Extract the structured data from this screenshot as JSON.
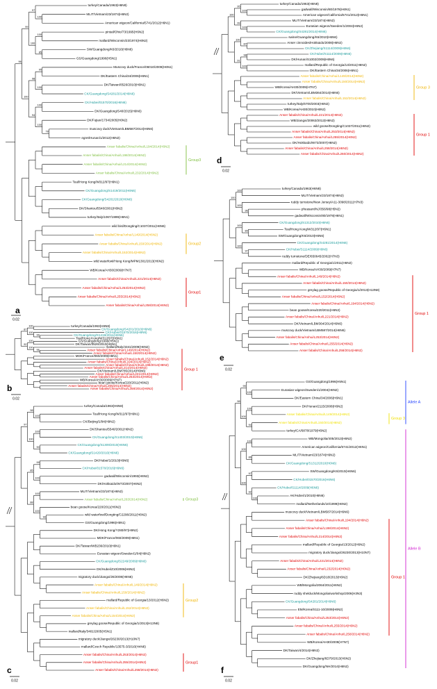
{
  "panels": [
    {
      "letter": "a",
      "scale": "0.02",
      "groups": [
        {
          "label": "Group3",
          "color": "#7fbf3f"
        },
        {
          "label": "Group2",
          "color": "#f0b400"
        },
        {
          "label": "Group1",
          "color": "#e00000"
        }
      ],
      "support": [
        100,
        97,
        100,
        85,
        100,
        99,
        95,
        100,
        98,
        100,
        78,
        100,
        94,
        100,
        96
      ],
      "leaves": [
        {
          "label": "turkey/Canada/1963(H6N8)"
        },
        {
          "label": "MLIT/Vietnam/23/1874(H6N2)"
        },
        {
          "label": "American wigeon/California/5741/2012(H6N1)"
        },
        {
          "label": "pintail/Ohio/73/1995(H6N2)"
        },
        {
          "label": "mallard/Wisconsin/23/1974(H6N2)"
        },
        {
          "label": "SW/Guangdong/K6/2010(H6N6)"
        },
        {
          "label": "GS/Guangdong/1996(H5N1)"
        },
        {
          "label": "Muscovy duck/France/06010/2009(H6N1)"
        },
        {
          "label": "DK/Eastern China/34/2006(H6N1)"
        },
        {
          "label": "DK/Taiwan/0526/2010(H6N1)"
        },
        {
          "label": "CK/Guangdong/S4281/2014(H6N6)",
          "color": "#1a9a9a"
        },
        {
          "label": "CK/Hubei/01570/2016(H6N6)",
          "color": "#1a9a9a"
        },
        {
          "label": "DK/Guangdong/S40/2015(H6N6)"
        },
        {
          "label": "DK/Fujian/1734/2005(H6N2)"
        },
        {
          "label": "muscovy duck/Vietnam/LBM587/2014(H6N6)"
        },
        {
          "label": "egret/Hunan/1/2012(H6N2)"
        },
        {
          "label": "Anser fabalis/China/Anhui/L194/2014(H6N2)",
          "color": "#7fbf3f"
        },
        {
          "label": "Anser fabalis/China/Anhui/L198/2014(H6N2)",
          "color": "#7fbf3f"
        },
        {
          "label": "Anser fabalis/China/Anhui/L214/2014(H6N2)",
          "color": "#7fbf3f"
        },
        {
          "label": "Anser fabalis/China/Anhui/L232/2014(H6N2)",
          "color": "#7fbf3f"
        },
        {
          "label": "Teal/Hong Kong/W312/97(H6N1)"
        },
        {
          "label": "CK/Guangdong/S1419/2011(H6N6)",
          "color": "#1a9a9a"
        },
        {
          "label": "CK/Guangdong/S4201/2010(H6N6)",
          "color": "#1a9a9a"
        },
        {
          "label": "DK/Shantou/5540/2001(H6N2)"
        },
        {
          "label": "turkey/Italy/1067/1999(H6N1)"
        },
        {
          "label": "wild bird/Dongting/C1037/2011(H6N6)"
        },
        {
          "label": "Anser fabalis/China/Anhui/L149/2014(H6N2)",
          "color": "#f0b400"
        },
        {
          "label": "Anser fabalis/China/Anhui/L150/2014(H6N2)",
          "color": "#f0b400"
        },
        {
          "label": "Anser fabalis/China/Anhui/L152/2014(H6N2)",
          "color": "#f0b400"
        },
        {
          "label": "wild waterfowl/Hong Kong/MPM1301/2013(H6N2)"
        },
        {
          "label": "WB/Korea/AH30/2009(H7N7)"
        },
        {
          "label": "Anser fabalis/China/Anhui/L221/2014(H6N2)",
          "color": "#e00000"
        },
        {
          "label": "Anser fabalis/China/Anhui/L253/2014(H6N2)",
          "color": "#e00000"
        },
        {
          "label": "Anser fabalis/China/Anhui/L255/2014(H6N2)",
          "color": "#e00000"
        },
        {
          "label": "Anser fabalis/China/Anhui/L258/2014(H6N2)",
          "color": "#e00000"
        }
      ]
    },
    {
      "letter": "b",
      "scale": "0.02",
      "groups": [
        {
          "label": "Group 1",
          "color": "#e00000"
        }
      ],
      "support": [
        100,
        99,
        100,
        87,
        100,
        96,
        100,
        92
      ],
      "leaves": [
        {
          "label": "turkey/Canada/1963(H6N8)"
        },
        {
          "label": "CK/Guangdong/S4201/2010(H6N6)",
          "color": "#1a9a9a"
        },
        {
          "label": "CK/Hubei/01570/2016(H6N6)",
          "color": "#1a9a9a"
        },
        {
          "label": "CK/Guangdong/S1419/2011(H6N6)",
          "color": "#1a9a9a"
        },
        {
          "label": "Teal/Hong Kong/W312/97(H6N1)"
        },
        {
          "label": "GS/Guangdong/1996(H5N1)"
        },
        {
          "label": "DK/Taiwan/0526/2010(H6N1)"
        },
        {
          "label": "mallard/Italy/4341/2009(H6N2)"
        },
        {
          "label": "Anser fabalis/China/Anhui/L149/2014(H6N2)",
          "color": "#e00000"
        },
        {
          "label": "Anser fabalis/China/Anhui/L150/2014(H6N2)",
          "color": "#e00000"
        },
        {
          "label": "MDK/France/060/2009(H6N1)"
        },
        {
          "label": "Anser fabalis/China/Anhui/L152/2014(H6N2)",
          "color": "#e00000"
        },
        {
          "label": "Anser fabalis/China/Anhui/L194/2014(H6N2)",
          "color": "#e00000"
        },
        {
          "label": "Anser fabalis/China/Anhui/L198/2014(H6N2)",
          "color": "#e00000"
        },
        {
          "label": "Anser fabalis/China/Anhui/L214/2014(H6N2)",
          "color": "#e00000"
        },
        {
          "label": "DK/Vietnam/LBM785/2014(H6N6)"
        },
        {
          "label": "Anser fabalis/China/Anhui/L221/2014(H6N2)",
          "color": "#e00000"
        },
        {
          "label": "Anser fabalis/China/Anhui/L253/2014(H6N2)",
          "color": "#e00000"
        },
        {
          "label": "WB/Korea/AH30/2009(H7N7)"
        },
        {
          "label": "bean goose/Korea/220/2011(H6N2)"
        },
        {
          "label": "Anser fabalis/China/Anhui/L255/2014(H6N2)",
          "color": "#e00000"
        },
        {
          "label": "Anser fabalis/China/Anhui/L258/2014(H6N2)",
          "color": "#e00000"
        }
      ]
    },
    {
      "letter": "c",
      "scale": "0.02",
      "groups": [
        {
          "label": "Group3",
          "color": "#7fbf3f"
        },
        {
          "label": "Group2",
          "color": "#f0b400"
        },
        {
          "label": "Group1",
          "color": "#e00000"
        }
      ],
      "support": [
        100,
        98,
        100,
        90,
        100,
        97,
        99,
        100,
        85,
        100,
        93,
        100,
        88
      ],
      "leaves": [
        {
          "label": "turkey/Canada/1963(H6N8)"
        },
        {
          "label": "Teal/Hong Kong/W312/97(H6N1)"
        },
        {
          "label": "CK/Beijing/1/94(H9N2)"
        },
        {
          "label": "DK/Shantou/5540/2001(H6N2)"
        },
        {
          "label": "CK/Guangdong/S1403/2010(H6N6)",
          "color": "#1a9a9a"
        },
        {
          "label": "CK/Guangdong/S1309/2010(H6N6)",
          "color": "#1a9a9a"
        },
        {
          "label": "CK/Guangdong/S1420/2010(H6N6)",
          "color": "#1a9a9a"
        },
        {
          "label": "DK/Hubei/1/2010(H6N6)"
        },
        {
          "label": "CK/Hubei/01570/2016(H6N6)",
          "color": "#1a9a9a"
        },
        {
          "label": "gadwall/Wisconsin/1993(H6N2)"
        },
        {
          "label": "DK/Hokkaido/W73/2007(H6N2)"
        },
        {
          "label": "MLIT/Vietnam/23/1874(H6N2)"
        },
        {
          "label": "Anser fabalis/China/Anhui/L263/2014(H6N2)",
          "color": "#7fbf3f"
        },
        {
          "label": "bean goose/Korea/220/2011(H6N2)"
        },
        {
          "label": "wild waterfowl/Dongting/C2296/2011(H6N2)"
        },
        {
          "label": "GS/Guangdong/1996(H5N1)"
        },
        {
          "label": "DK/Hong Kong/Y280/97(H9N2)"
        },
        {
          "label": "MDK/France/060/2009(H6N1)"
        },
        {
          "label": "DK/Taiwan/WB236/2010(H6N1)"
        },
        {
          "label": "Eurasian wigeon/Sweden/1/04(H6N2)"
        },
        {
          "label": "CK/Guangdong/S2249/2009(H6N6)",
          "color": "#1a9a9a"
        },
        {
          "label": "DK/Hubei/Z10/2006(H6N2)"
        },
        {
          "label": "migratory duck/Jiangxi/26/2008(H6N6)"
        },
        {
          "label": "Anser fabalis/China/Anhui/L149/2014(H6N2)",
          "color": "#f0b400"
        },
        {
          "label": "Anser fabalis/China/Anhui/L150/2014(H6N2)",
          "color": "#f0b400"
        },
        {
          "label": "mallard/Republic of Georgia/13/2012(H6N2)"
        },
        {
          "label": "Anser fabalis/China/Anhui/L152/2014(H6N2)",
          "color": "#f0b400"
        },
        {
          "label": "Anser fabalis/China/Anhui/L154/2014(H6N2)",
          "color": "#f0b400"
        },
        {
          "label": "greylag goose/Republic of Georgia/1/2013(H13N8)"
        },
        {
          "label": "mallard/Italy/3401/2005(H5N1)"
        },
        {
          "label": "migratory duck/Jiangxi/26230/2013(H10N7)"
        },
        {
          "label": "mallard/Czech Republic/13575-3/2010(H4N6)"
        },
        {
          "label": "Anser fabalis/China/Anhui/L253/2014(H6N2)",
          "color": "#e00000"
        },
        {
          "label": "Anser fabalis/China/Anhui/L255/2014(H6N2)",
          "color": "#e00000"
        },
        {
          "label": "Anser fabalis/China/Anhui/L258/2014(H6N2)",
          "color": "#e00000"
        }
      ]
    },
    {
      "letter": "d",
      "scale": "0.02",
      "groups": [
        {
          "label": "Group 3",
          "color": "#f0b400"
        },
        {
          "label": "Group 1",
          "color": "#e00000"
        }
      ],
      "support": [
        100,
        95,
        100,
        99,
        100,
        87,
        100,
        98,
        100,
        91
      ],
      "leaves": [
        {
          "label": "turkey/Canada/1963(H6N8)"
        },
        {
          "label": "gadwall/Wisconsin/80/1978(H6N1)"
        },
        {
          "label": "American wigeon/California/5741/2012(H6N1)"
        },
        {
          "label": "MLIT/Vietnam/23/1874(H6N2)"
        },
        {
          "label": "Eurasian wigeon/Sweden/1/2004(H6N2)"
        },
        {
          "label": "CK/Guangdong/S4281/2014(H6N6)",
          "color": "#1a9a9a"
        },
        {
          "label": "swine/Guangdong/K6/2010(H6N6)"
        },
        {
          "label": "Anser cinnoides/Hokkaido/2008(H6N2)"
        },
        {
          "label": "CK/Zhejiang/S1114/2009(H6N6)",
          "color": "#1a9a9a"
        },
        {
          "label": "CK/Hubei/S1114/2009(H6N6)",
          "color": "#1a9a9a"
        },
        {
          "label": "DK/Hunan/S1002/2009(H6N6)"
        },
        {
          "label": "mallard/Republic of Georgia/13/2011(H6N2)"
        },
        {
          "label": "DK/Eastern China/34/2006(H6N1)"
        },
        {
          "label": "Anser fabalis/China/Anhui/L149/2014(H6N2)",
          "color": "#f0b400"
        },
        {
          "label": "Anser fabalis/China/Anhui/L150/2014(H6N2)",
          "color": "#f0b400"
        },
        {
          "label": "WB/Korea/AH30/2009(H7N7)"
        },
        {
          "label": "DK/Vietnam/LBM364/2014(H6N6)"
        },
        {
          "label": "Anser fabalis/China/Anhui/L152/2014(H6N2)",
          "color": "#f0b400"
        },
        {
          "label": "turkey/Italy/6700/2003(H6N2)"
        },
        {
          "label": "WB/Korea/AH30/2010(H6N2)"
        },
        {
          "label": "Anser fabalis/China/Anhui/L221/2014(H6N2)",
          "color": "#e00000"
        },
        {
          "label": "WB/Jiangxi/20063/2012(H6N2)"
        },
        {
          "label": "wild goose/Dongting/C1037/2011(H6N2)"
        },
        {
          "label": "Anser fabalis/China/Anhui/L253/2014(H6N2)",
          "color": "#e00000"
        },
        {
          "label": "Anser fabalis/China/Anhui/L255/2014(H6N2)",
          "color": "#e00000"
        },
        {
          "label": "DK/Hokkaido/W73/2007(H6N2)"
        },
        {
          "label": "Anser fabalis/China/Anhui/L258/2014(H6N2)",
          "color": "#e00000"
        },
        {
          "label": "Anser fabalis/China/Anhui/L260/2014(H6N2)",
          "color": "#e00000"
        }
      ]
    },
    {
      "letter": "e",
      "scale": "0.02",
      "groups": [
        {
          "label": "Group 1",
          "color": "#e00000"
        }
      ],
      "support": [
        100,
        96,
        100,
        100,
        89,
        100,
        97,
        100
      ],
      "leaves": [
        {
          "label": "turkey/Canada/1963(H6N8)"
        },
        {
          "label": "MLIT/Vietnam/23/1874(H6N2)"
        },
        {
          "label": "ruddy turnstone/New Jersey/A11-3098/2011(H7N3)"
        },
        {
          "label": "pheasant/NJ/356/98(H5N2)"
        },
        {
          "label": "gadwall/Wisconsin/80/1978(H6N1)"
        },
        {
          "label": "CK/Guangdong/S1312/2010(H6N6)",
          "color": "#1a9a9a"
        },
        {
          "label": "Teal/Hong Kong/W312/97(H6N1)"
        },
        {
          "label": "SW/Guangdong/K6/2010(H6N6)"
        },
        {
          "label": "CK/Guangdong/S4281/2014(H6N6)",
          "color": "#1a9a9a"
        },
        {
          "label": "CK/Hubei/S1114/2009(H6N6)",
          "color": "#1a9a9a"
        },
        {
          "label": "ruddy turnstone/DE/650645/2002(H7N3)"
        },
        {
          "label": "mallard/Republic of Georgia/1/2011(H6N2)"
        },
        {
          "label": "WB/Korea/AH30/2009(H7N7)"
        },
        {
          "label": "Anser fabalis/China/Anhui/L149/2014(H6N2)",
          "color": "#e00000"
        },
        {
          "label": "Anser fabalis/China/Anhui/L150/2014(H6N2)",
          "color": "#e00000"
        },
        {
          "label": "greylag goose/Republic of Georgia/1/2013(H13N8)"
        },
        {
          "label": "Anser fabalis/China/Anhui/L152/2014(H6N2)",
          "color": "#e00000"
        },
        {
          "label": "Anser fabalis/China/Anhui/L194/2014(H6N2)",
          "color": "#e00000"
        },
        {
          "label": "bean goose/Korea/220/2011(H6N2)"
        },
        {
          "label": "Anser fabalis/China/Anhui/L221/2014(H6N2)",
          "color": "#e00000"
        },
        {
          "label": "DK/Vietnam/LBM364/2014(H6N6)"
        },
        {
          "label": "muscovy duck/Vietnam/LBM587/2014(H6N6)"
        },
        {
          "label": "Anser fabalis/China/Anhui/L253/2014(H6N2)",
          "color": "#e00000"
        },
        {
          "label": "Anser fabalis/China/Anhui/L255/2014(H6N2)",
          "color": "#e00000"
        },
        {
          "label": "Anser fabalis/China/Anhui/L258/2014(H6N2)",
          "color": "#e00000"
        }
      ]
    },
    {
      "letter": "f",
      "scale": "0.02",
      "groups": [
        {
          "label": "Group 3",
          "color": "#f0e000"
        },
        {
          "label": "Group 1",
          "color": "#e00000"
        }
      ],
      "alleles": [
        {
          "label": "Allele A",
          "color": "#1f3fff"
        },
        {
          "label": "Allele B",
          "color": "#d01fd0"
        }
      ],
      "support": [
        100,
        99,
        100,
        94,
        100,
        98,
        100,
        86,
        100,
        97,
        100,
        92,
        100
      ],
      "leaves": [
        {
          "label": "GS/Guangdong/1996(H5N1)"
        },
        {
          "label": "Eurasian wigeon/Sweden/1/2004(H6N2)"
        },
        {
          "label": "DK/Eastern China/34/2006(H6N1)"
        },
        {
          "label": "DK/Hunan/2115/2008(H6N2)"
        },
        {
          "label": "Anser fabalis/China/Anhui/L149/2014(H6N2)",
          "color": "#f0e000"
        },
        {
          "label": "Anser fabalis/China/Anhui/L150/2014(H6N2)",
          "color": "#f0e000"
        },
        {
          "label": "turkey/CA/6878/1979(H6N2)"
        },
        {
          "label": "WB/Mongolia/405/2013(H6N2)"
        },
        {
          "label": "American wigeon/California/5741/2012(H6N1)"
        },
        {
          "label": "MLIT/Vietnam/23/1874(H6N2)"
        },
        {
          "label": "CK/Guangdong/S1312/2010(H6N6)",
          "color": "#1a9a9a"
        },
        {
          "label": "SW/Guangdong/K6/2010(H6N6)"
        },
        {
          "label": "CK/Hubei/01570/2016(H6N6)",
          "color": "#1a9a9a"
        },
        {
          "label": "CK/Hubei/S1114/2009(H6N6)",
          "color": "#1a9a9a"
        },
        {
          "label": "AK/Hubei/1/2010(H6N6)"
        },
        {
          "label": "mallard/Netherlands/10/1999(H6N2)"
        },
        {
          "label": "muscovy duck/Vietnam/LBM587/2014(H6N6)"
        },
        {
          "label": "Anser fabalis/China/Anhui/L194/2014(H6N2)",
          "color": "#e00000"
        },
        {
          "label": "Anser fabalis/China/Anhui/L198/2014(H6N2)",
          "color": "#e00000"
        },
        {
          "label": "Anser fabalis/China/Anhui/L214/2014(H6N2)",
          "color": "#e00000"
        },
        {
          "label": "mallard/Republic of Georgia/13/2012(H6N2)"
        },
        {
          "label": "migratory duck/Jiangxi/26230/2013(H10N7)"
        },
        {
          "label": "Anser fabalis/China/Anhui/L221/2014(H6N2)",
          "color": "#e00000"
        },
        {
          "label": "Anser fabalis/China/Anhui/L232/2014(H6N2)",
          "color": "#e00000"
        },
        {
          "label": "DK/Zhejiang/6D18/2013(H6N2)"
        },
        {
          "label": "WB/Mongolia/2064/2011(H6N2)"
        },
        {
          "label": "ruddy shelduck/Mongolia/workshop/2006(H3N3)"
        },
        {
          "label": "CK/Guangdong/S4281/2014(H6N6)",
          "color": "#1a9a9a"
        },
        {
          "label": "EM/Korea/S111-10/2009(H6N2)"
        },
        {
          "label": "Anser fabalis/China/Anhui/L253/2014(H6N2)",
          "color": "#e00000"
        },
        {
          "label": "Anser fabalis/China/Anhui/L255/2014(H6N2)",
          "color": "#e00000"
        },
        {
          "label": "Anser fabalis/China/Anhui/L258/2014(H6N2)",
          "color": "#e00000"
        },
        {
          "label": "WB/Korea/AH30/2009(H7N7)"
        },
        {
          "label": "DK/Taiwan/4/2014(H6N2)"
        },
        {
          "label": "DK/Zhejiang/6D79/2013(H6N2)"
        },
        {
          "label": "DK/Guangdong/NH/2014(H6N2)"
        }
      ]
    }
  ]
}
